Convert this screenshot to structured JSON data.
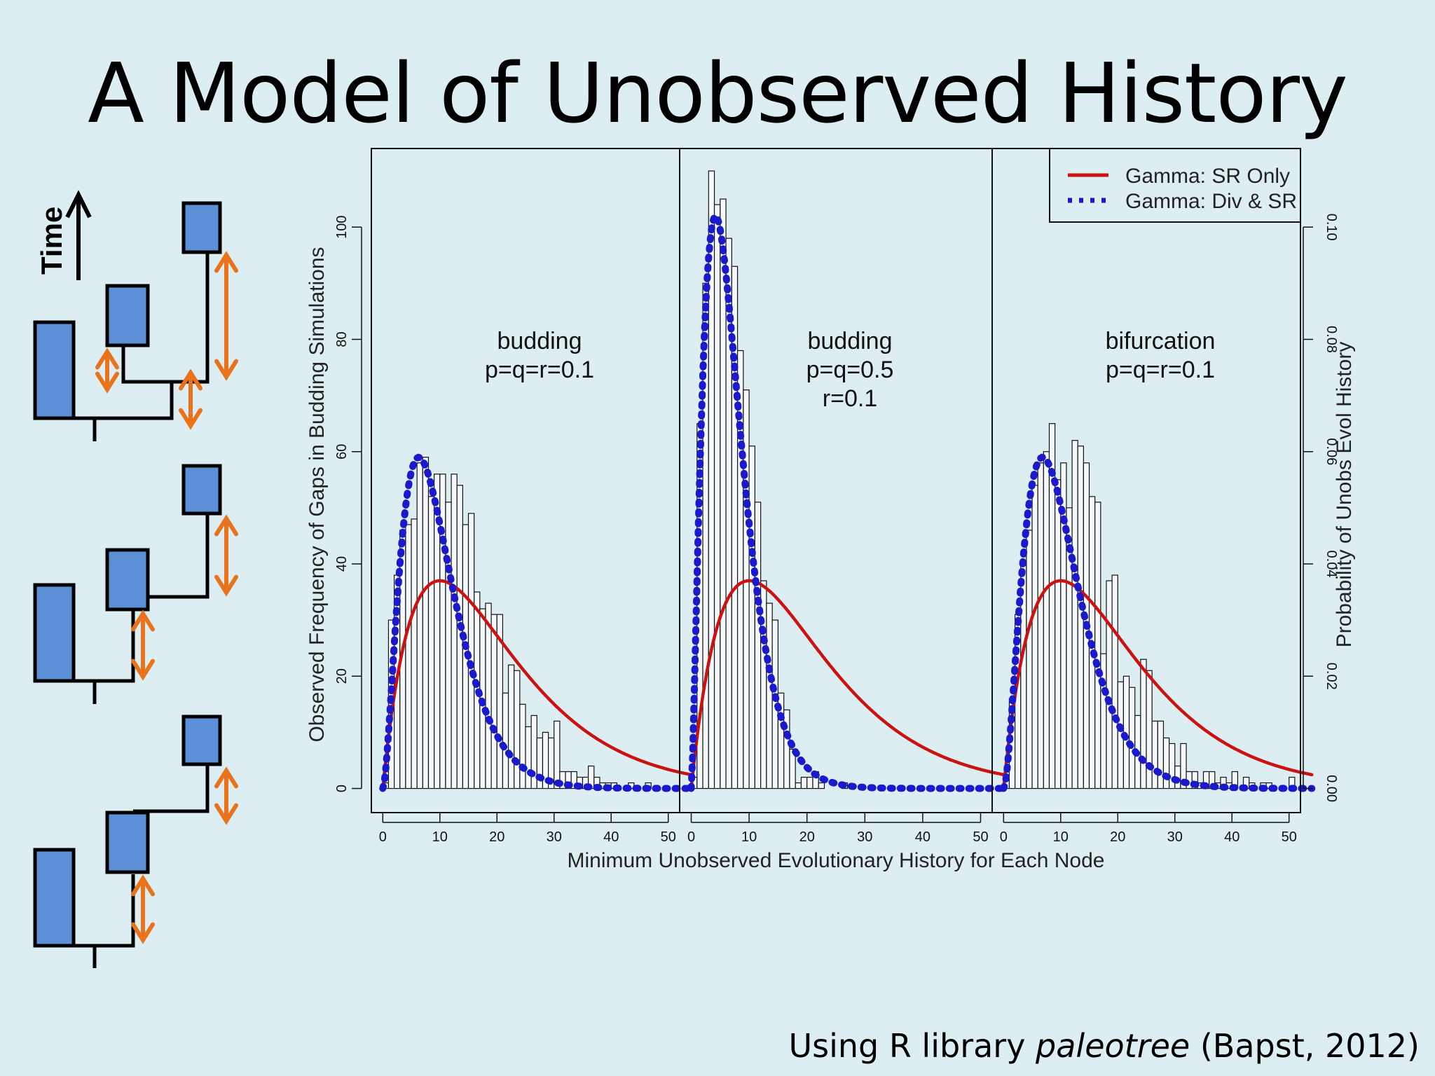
{
  "slide": {
    "title": "A Model of Unobserved History",
    "footer": {
      "prefix": "Using R library ",
      "italic": "paleotree",
      "suffix": " (Bapst, 2012)"
    }
  },
  "diagram": {
    "time_label": "Time",
    "box_color": "#5b8fd6",
    "arrow_color": "#e8731c"
  },
  "chart_data": {
    "type": "bar",
    "xlabel": "Minimum Unobserved Evolutionary History for Each Node",
    "ylabel": "Observed Frequency of Gaps in Budding Simulations",
    "ylabel_right": "Probability of Unobs Evol History",
    "xlim": [
      -2,
      52
    ],
    "ylim": [
      -4.3,
      114
    ],
    "ylim_right": [
      -0.0043,
      0.114
    ],
    "xticks": [
      0,
      10,
      20,
      30,
      40,
      50
    ],
    "yticks": [
      0,
      20,
      40,
      60,
      80,
      100
    ],
    "yticks_right": [
      "0.00",
      "0.02",
      "0.04",
      "0.06",
      "0.08",
      "0.10"
    ],
    "legend": {
      "position": "top-right",
      "entries": [
        {
          "label": "Gamma: SR Only",
          "color": "#cc1111",
          "style": "solid"
        },
        {
          "label": "Gamma: Div & SR",
          "color": "#1a1acc",
          "style": "dotted"
        }
      ]
    },
    "panels": [
      {
        "labels": [
          "budding",
          "p=q=r=0.1"
        ],
        "bin_width": 1,
        "counts": [
          1,
          30,
          38,
          46,
          47,
          48,
          58,
          59,
          52,
          56,
          56,
          51,
          56,
          54,
          47,
          49,
          35,
          32,
          33,
          31,
          31,
          17,
          22,
          21,
          15,
          11,
          13,
          9,
          10,
          9,
          12,
          3,
          3,
          3,
          2,
          2,
          4,
          2,
          1,
          1,
          1,
          0,
          0,
          1,
          0,
          0,
          1,
          0,
          0,
          0,
          0
        ],
        "gamma_sr": {
          "shape": 2.0,
          "scale": 10,
          "peak": 37,
          "color": "#cc1111"
        },
        "gamma_div": {
          "shape": 2.8,
          "scale": 3.5,
          "peak": 59,
          "color": "#1a1acc"
        }
      },
      {
        "labels": [
          "budding",
          "p=q=0.5",
          "r=0.1"
        ],
        "bin_width": 1,
        "counts": [
          2,
          65,
          90,
          110,
          104,
          105,
          98,
          93,
          78,
          71,
          61,
          51,
          37,
          33,
          30,
          17,
          14,
          7,
          1,
          2,
          2,
          3,
          1,
          0,
          0,
          0,
          1,
          0,
          0,
          0
        ],
        "gamma_sr": {
          "shape": 2.0,
          "scale": 10,
          "peak": 37,
          "color": "#cc1111"
        },
        "gamma_div": {
          "shape": 2.5,
          "scale": 2.8,
          "peak": 102,
          "color": "#1a1acc"
        }
      },
      {
        "labels": [
          "bifurcation",
          "p=q=r=0.1"
        ],
        "bin_width": 1,
        "counts": [
          2,
          16,
          31,
          40,
          46,
          54,
          58,
          60,
          65,
          55,
          58,
          50,
          62,
          61,
          58,
          52,
          51,
          24,
          37,
          38,
          19,
          20,
          18,
          13,
          23,
          21,
          12,
          12,
          9,
          8,
          4,
          8,
          3,
          3,
          1,
          3,
          3,
          1,
          2,
          1,
          3,
          0,
          2,
          1,
          0,
          1,
          1,
          0,
          0,
          0,
          2
        ],
        "gamma_sr": {
          "shape": 2.0,
          "scale": 10,
          "peak": 37,
          "color": "#cc1111"
        },
        "gamma_div": {
          "shape": 2.9,
          "scale": 3.6,
          "peak": 59,
          "color": "#1a1acc"
        }
      }
    ]
  }
}
